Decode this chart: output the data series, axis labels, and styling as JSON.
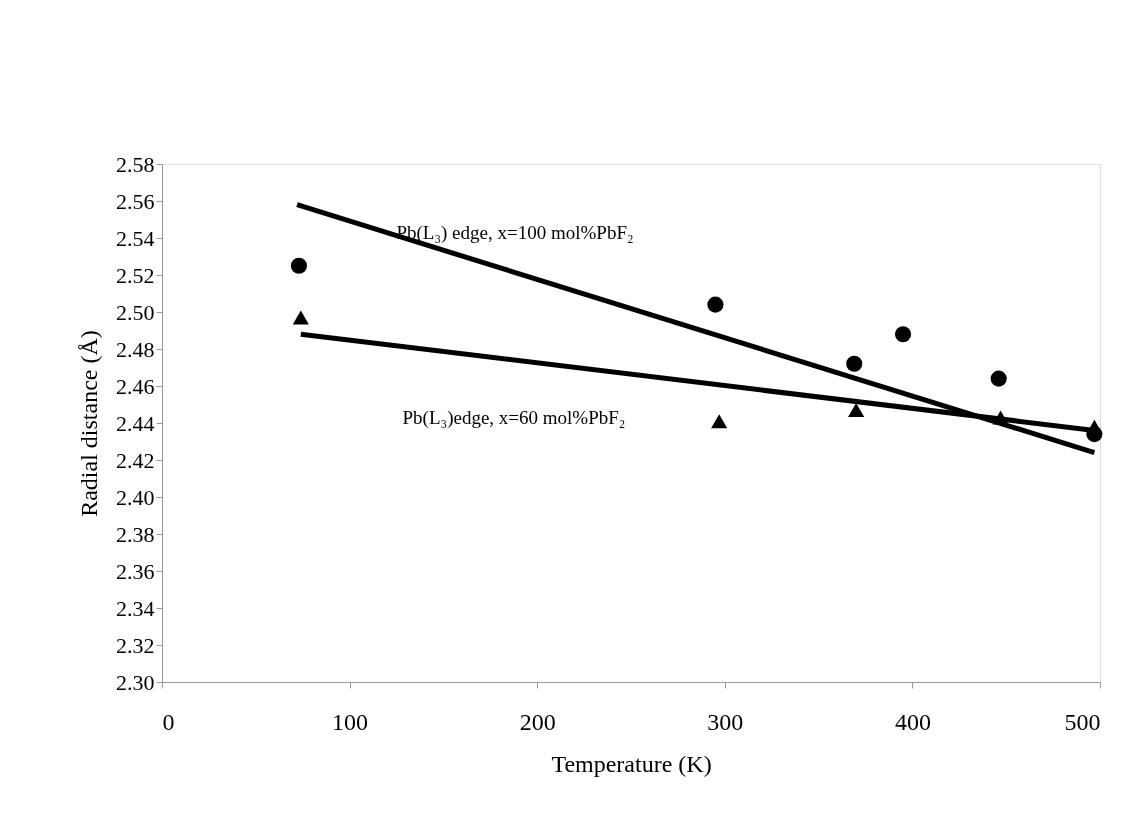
{
  "chart_data": {
    "type": "scatter",
    "xlabel": "Temperature (K)",
    "ylabel": "Radial distance (Å)",
    "xlim": [
      0,
      500
    ],
    "xticks": [
      0,
      100,
      200,
      300,
      400,
      500
    ],
    "ylim": [
      2.3,
      2.58
    ],
    "yticks": [
      {
        "value": 2.3,
        "label": "2.30"
      },
      2.32,
      2.34,
      2.36,
      2.38,
      {
        "value": 2.4,
        "label": "2.40"
      },
      2.42,
      2.44,
      2.46,
      2.48,
      {
        "value": 2.5,
        "label": "2.50"
      },
      2.52,
      2.54,
      2.56,
      2.58
    ],
    "grid": false,
    "series": [
      {
        "marker": "circle",
        "color": "#000000",
        "x": [
          73,
          295,
          369,
          395,
          446,
          497
        ],
        "values": [
          2.525,
          2.504,
          2.472,
          2.488,
          2.464,
          2.434
        ]
      },
      {
        "marker": "triangle",
        "color": "#000000",
        "x": [
          74,
          297,
          370,
          447,
          497
        ],
        "values": [
          2.497,
          2.441,
          2.447,
          2.443,
          2.438
        ]
      },
      {
        "type": "line",
        "marker": "none",
        "line_style": "solid",
        "color": "#000000",
        "x": [
          72,
          497
        ],
        "values": [
          2.558,
          2.424
        ]
      },
      {
        "type": "line",
        "marker": "none",
        "line_style": "solid",
        "color": "#000000",
        "x": [
          74,
          497
        ],
        "values": [
          2.488,
          2.436
        ]
      }
    ],
    "annotations": [
      "Pb(L₃) edge, x=100 mol%PbF₂",
      "Pb(L₃)edge, x=60 mol%PbF₂"
    ]
  }
}
